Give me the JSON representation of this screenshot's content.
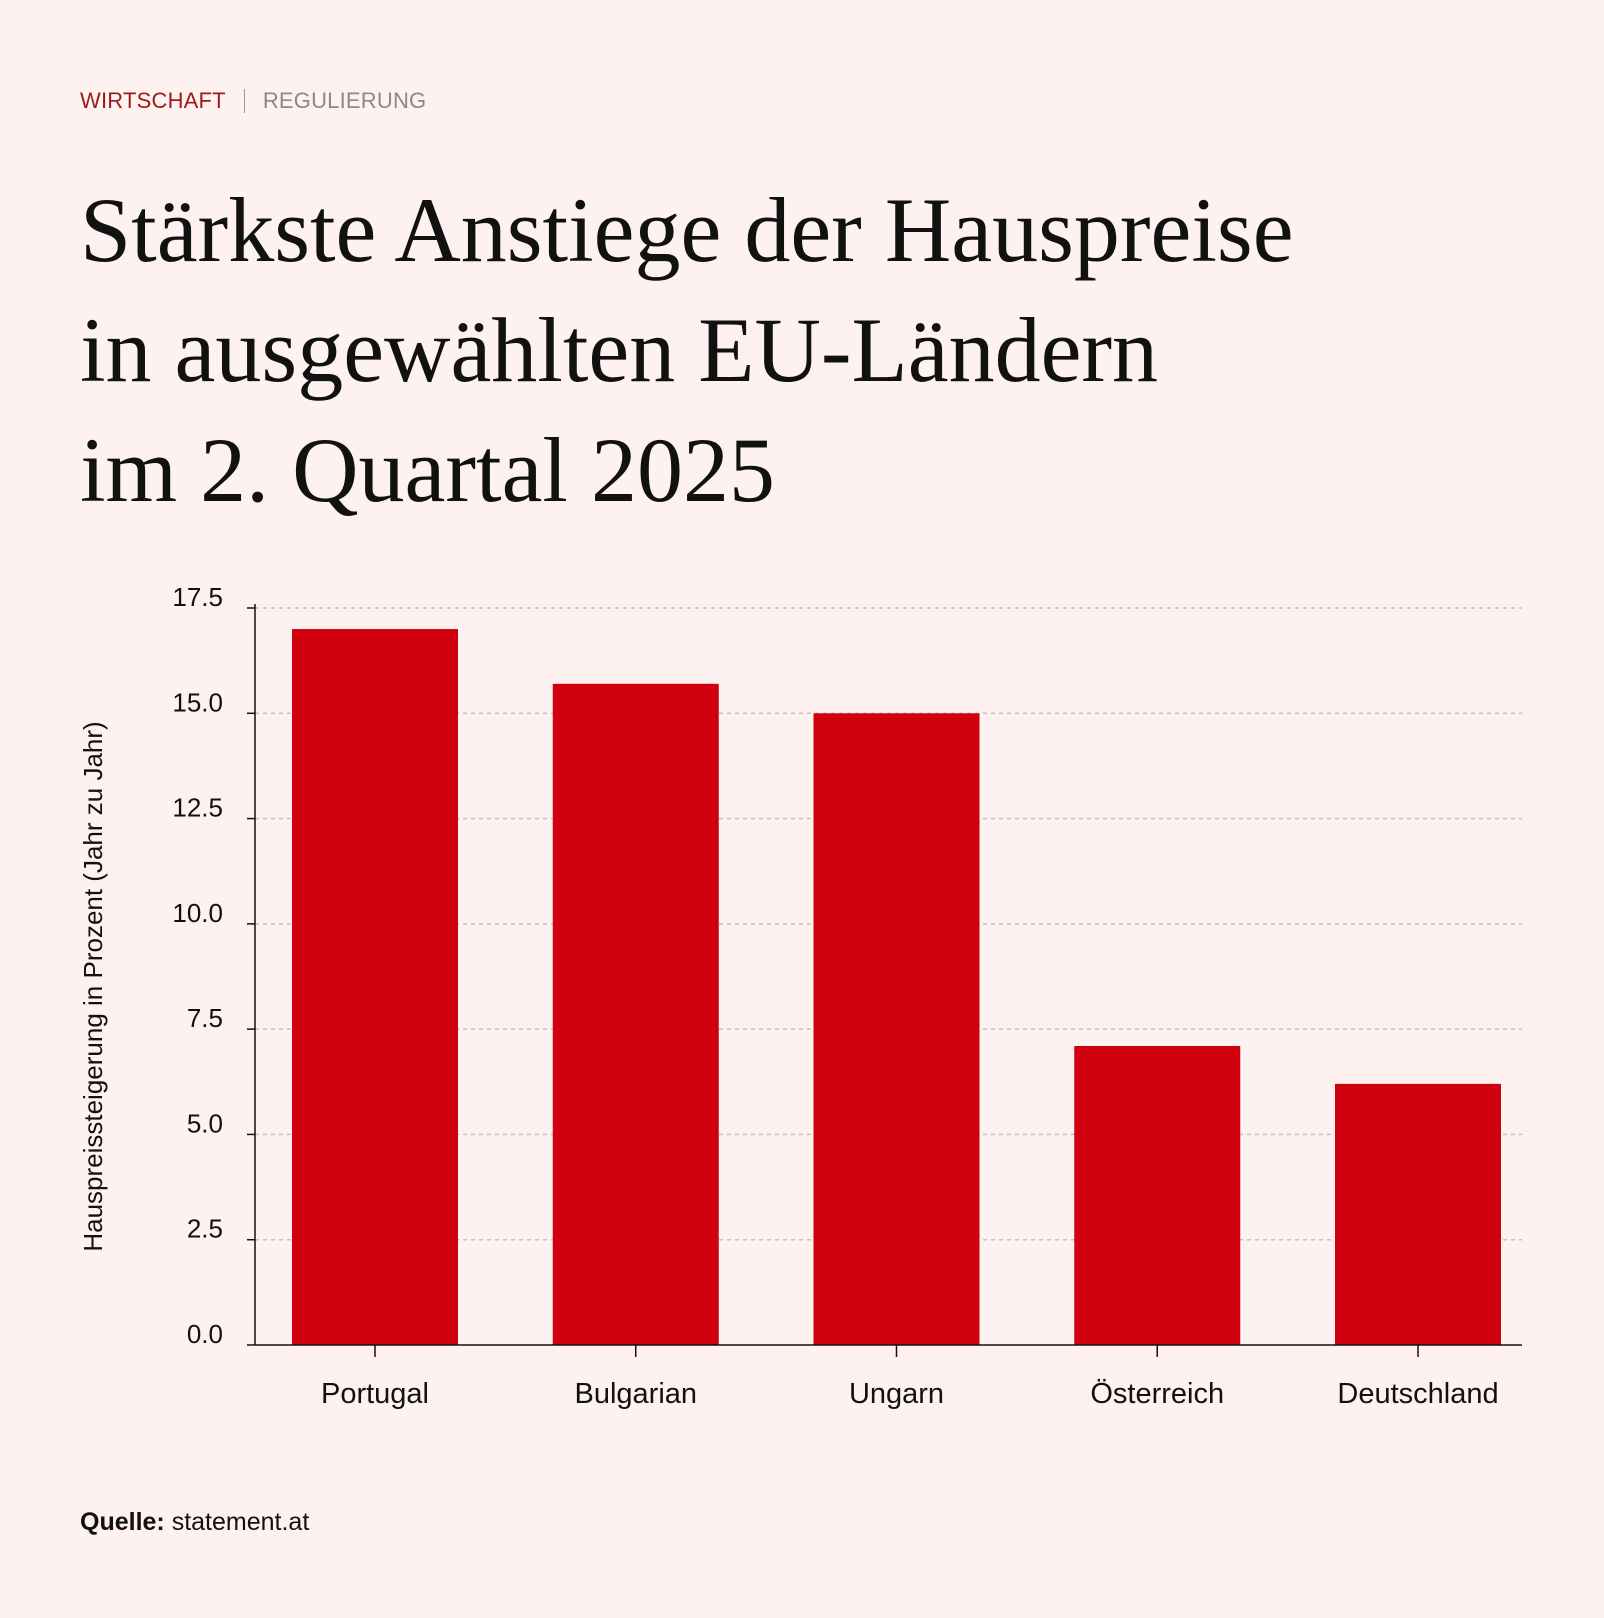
{
  "kicker": {
    "category": "WIRTSCHAFT",
    "subcategory": "REGULIERUNG",
    "category_color": "#9b1b1b",
    "subcategory_color": "#8a8a8a"
  },
  "headline": {
    "line1": "Stärkste Anstiege der Hauspreise",
    "line2": "in ausgewählten EU-Ländern",
    "line3": "im 2. Quartal 2025"
  },
  "source": {
    "label": "Quelle:",
    "text": "statement.at"
  },
  "colors": {
    "background": "#fdf2f0",
    "bar": "#d0000f",
    "grid": "#c8c0c0",
    "axis": "#111111"
  },
  "chart_data": {
    "type": "bar",
    "title": "",
    "xlabel": "",
    "ylabel": "Hauspreissteigerung in Prozent (Jahr zu Jahr)",
    "categories": [
      "Portugal",
      "Bulgarian",
      "Ungarn",
      "Österreich",
      "Deutschland"
    ],
    "values": [
      17.0,
      15.7,
      15.0,
      7.1,
      6.2
    ],
    "ylim": [
      0,
      17.5
    ],
    "yticks": [
      "0.0",
      "2.5",
      "5.0",
      "7.5",
      "10.0",
      "12.5",
      "15.0",
      "17.5"
    ],
    "grid": true,
    "legend": "none"
  }
}
